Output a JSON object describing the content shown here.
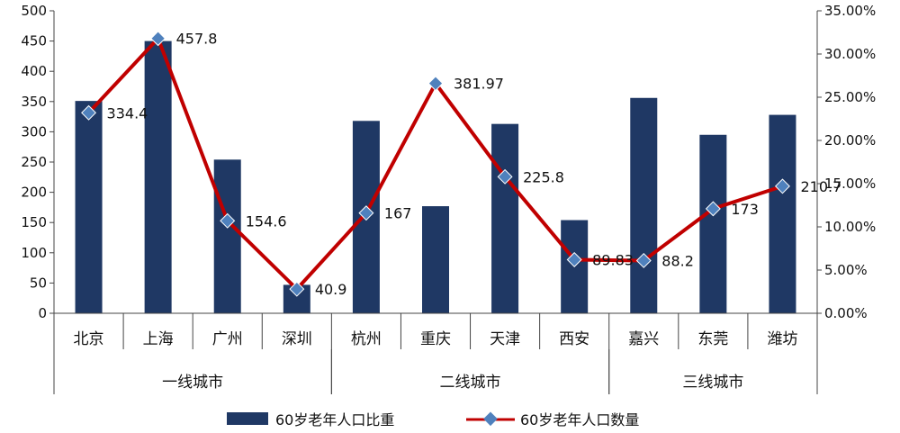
{
  "chart_data": {
    "type": "bar-line",
    "categories": [
      "北京",
      "上海",
      "广州",
      "深圳",
      "杭州",
      "重庆",
      "天津",
      "西安",
      "嘉兴",
      "东莞",
      "潍坊"
    ],
    "groups": [
      {
        "label": "一线城市",
        "start": 0,
        "end": 3
      },
      {
        "label": "二线城市",
        "start": 4,
        "end": 7
      },
      {
        "label": "三线城市",
        "start": 8,
        "end": 10
      }
    ],
    "series": [
      {
        "name": "60岁老年人口比重",
        "type": "bar",
        "axis": "left",
        "color": "#1f3864",
        "values": [
          351,
          450,
          254,
          47,
          318,
          177,
          313,
          154,
          356,
          295,
          328
        ]
      },
      {
        "name": "60岁老年人口数量",
        "type": "line",
        "axis": "right",
        "color": "#c00000",
        "marker_color": "#4f81bd",
        "values": [
          0.232,
          0.318,
          0.107,
          0.028,
          0.116,
          0.266,
          0.158,
          0.062,
          0.061,
          0.121,
          0.147
        ],
        "labels": [
          "334.4",
          "457.8",
          "154.6",
          "40.9",
          "167",
          "381.97",
          "225.8",
          "89.83",
          "88.2",
          "173",
          "210.7"
        ]
      }
    ],
    "left_axis": {
      "min": 0,
      "max": 500,
      "ticks": [
        "0",
        "50",
        "100",
        "150",
        "200",
        "250",
        "300",
        "350",
        "400",
        "450",
        "500"
      ]
    },
    "right_axis": {
      "min": 0,
      "max": 0.35,
      "ticks": [
        "0.00%",
        "5.00%",
        "10.00%",
        "15.00%",
        "20.00%",
        "25.00%",
        "30.00%",
        "35.00%"
      ]
    },
    "grid": false,
    "legend": "bottom"
  }
}
